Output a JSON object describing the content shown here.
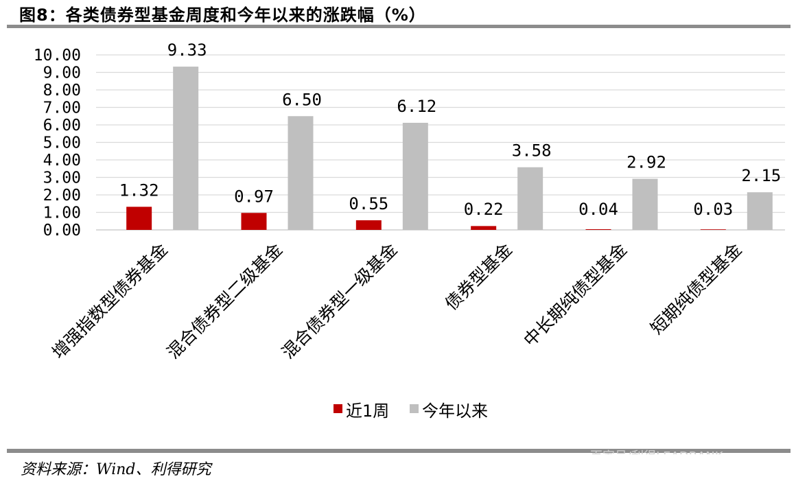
{
  "figure": {
    "title": "图8：各类债券型基金周度和今年以来的涨跌幅（%）",
    "source": "资料来源：Wind、利得研究",
    "watermark": "百家号/利得LEADBANK"
  },
  "colors": {
    "week": "#c00000",
    "ytd": "#bfbfbf",
    "grid": "#d9d9d9",
    "rule": "#8c8c8c"
  },
  "chart_data": {
    "type": "bar",
    "categories": [
      "增强指数型债券基金",
      "混合债券型二级基金",
      "混合债券型一级基金",
      "债券型基金",
      "中长期纯债型基金",
      "短期纯债型基金"
    ],
    "series": [
      {
        "name": "近1周",
        "values": [
          1.32,
          0.97,
          0.55,
          0.22,
          0.04,
          0.03
        ],
        "labels": [
          "1.32",
          "0.97",
          "0.55",
          "0.22",
          "0.04",
          "0.03"
        ]
      },
      {
        "name": "今年以来",
        "values": [
          9.33,
          6.5,
          6.12,
          3.58,
          2.92,
          2.15
        ],
        "labels": [
          "9.33",
          "6.50",
          "6.12",
          "3.58",
          "2.92",
          "2.15"
        ]
      }
    ],
    "ylim": [
      0,
      10
    ],
    "yticks": [
      "0.00",
      "1.00",
      "2.00",
      "3.00",
      "4.00",
      "5.00",
      "6.00",
      "7.00",
      "8.00",
      "9.00",
      "10.00"
    ],
    "grid": true,
    "legend_position": "bottom"
  }
}
